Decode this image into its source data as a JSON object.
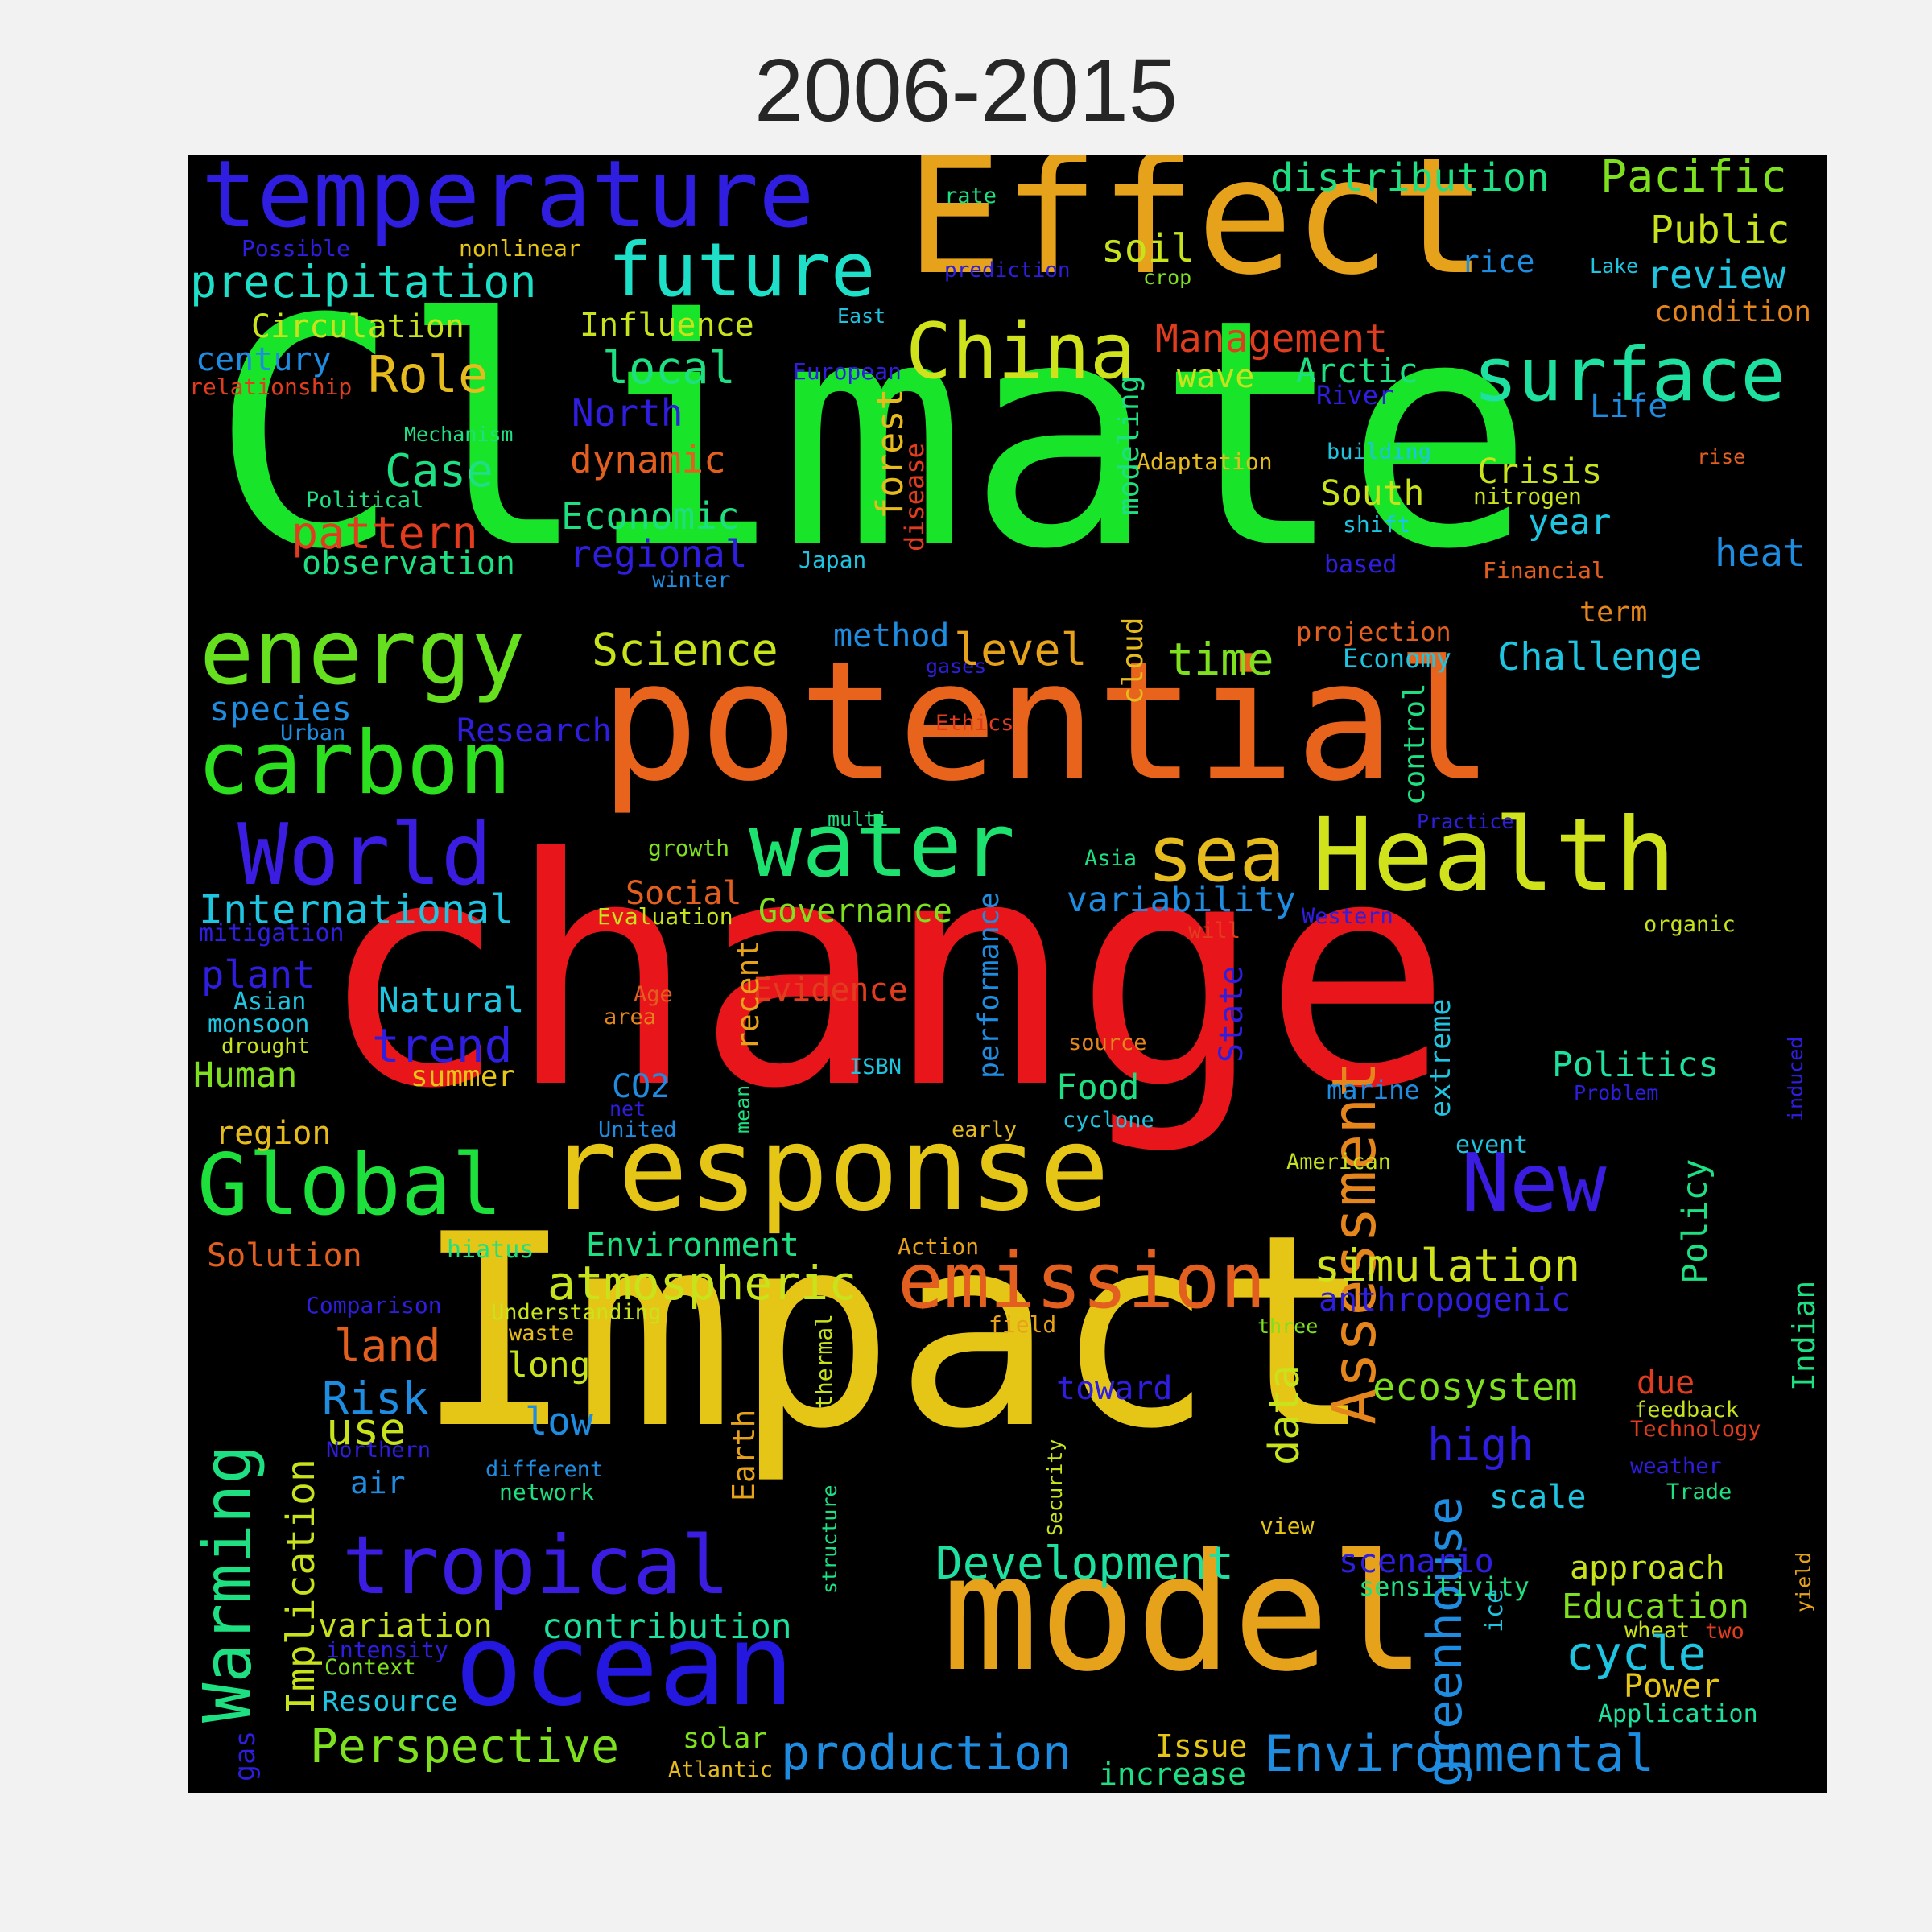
{
  "title": "2006-2015",
  "words": [
    {
      "text": "Climate",
      "color": "#18e52a"
    },
    {
      "text": "change",
      "color": "#e8161a"
    },
    {
      "text": "Impact",
      "color": "#e5c617"
    },
    {
      "text": "potential",
      "color": "#e8641c"
    },
    {
      "text": "Effect",
      "color": "#e5a21a"
    },
    {
      "text": "model",
      "color": "#e5a21a"
    },
    {
      "text": "response",
      "color": "#e5c617"
    },
    {
      "text": "ocean",
      "color": "#2317e0"
    },
    {
      "text": "temperature",
      "color": "#2f1de0"
    },
    {
      "text": "Health",
      "color": "#cfe21c"
    },
    {
      "text": "water",
      "color": "#1ee26f"
    },
    {
      "text": "energy",
      "color": "#66df1f"
    },
    {
      "text": "carbon",
      "color": "#2de01f"
    },
    {
      "text": "Global",
      "color": "#1ee03d"
    },
    {
      "text": "World",
      "color": "#3a1de0"
    },
    {
      "text": "tropical",
      "color": "#3a1de0"
    },
    {
      "text": "emission",
      "color": "#e25f1f"
    },
    {
      "text": "surface",
      "color": "#1ee0a0"
    },
    {
      "text": "China",
      "color": "#cfe21c"
    },
    {
      "text": "future",
      "color": "#1ee0c9"
    },
    {
      "text": "New",
      "color": "#3a1de0"
    },
    {
      "text": "sea",
      "color": "#e5bb1d"
    },
    {
      "text": "Warming",
      "color": "#1ee082"
    },
    {
      "text": "Assessment",
      "color": "#e5861d"
    },
    {
      "text": "greenhouse",
      "color": "#1e8ce0"
    },
    {
      "text": "atmospheric",
      "color": "#c8e21c"
    },
    {
      "text": "simulation",
      "color": "#cfe21c"
    },
    {
      "text": "Environmental",
      "color": "#1e8ce0"
    },
    {
      "text": "production",
      "color": "#1e8ce0"
    },
    {
      "text": "Perspective",
      "color": "#7ee01e"
    },
    {
      "text": "Development",
      "color": "#1ee0a0"
    },
    {
      "text": "precipitation",
      "color": "#1ee0c9"
    },
    {
      "text": "Pacific",
      "color": "#7ee01e"
    },
    {
      "text": "distribution",
      "color": "#1ee082"
    },
    {
      "text": "Public",
      "color": "#c8e21c"
    },
    {
      "text": "review",
      "color": "#1ec4e0"
    },
    {
      "text": "condition",
      "color": "#e5861d"
    },
    {
      "text": "Management",
      "color": "#e23c1f"
    },
    {
      "text": "Arctic",
      "color": "#1ee082"
    },
    {
      "text": "River",
      "color": "#2f1de0"
    },
    {
      "text": "Life",
      "color": "#1e8ce0"
    },
    {
      "text": "rice",
      "color": "#1e8ce0"
    },
    {
      "text": "Lake",
      "color": "#1ec4e0"
    },
    {
      "text": "soil",
      "color": "#c8e21c"
    },
    {
      "text": "crop",
      "color": "#7ee01e"
    },
    {
      "text": "wave",
      "color": "#c8e21c"
    },
    {
      "text": "rate",
      "color": "#1ee082"
    },
    {
      "text": "prediction",
      "color": "#2f1de0"
    },
    {
      "text": "East",
      "color": "#1ec4e0"
    },
    {
      "text": "European",
      "color": "#2f1de0"
    },
    {
      "text": "Possible",
      "color": "#2f1de0"
    },
    {
      "text": "nonlinear",
      "color": "#e5c617"
    },
    {
      "text": "Circulation",
      "color": "#c8e21c"
    },
    {
      "text": "Influence",
      "color": "#c8e21c"
    },
    {
      "text": "century",
      "color": "#1e8ce0"
    },
    {
      "text": "relationship",
      "color": "#e23c1f"
    },
    {
      "text": "Role",
      "color": "#e5bb1d"
    },
    {
      "text": "local",
      "color": "#1ee082"
    },
    {
      "text": "North",
      "color": "#2f1de0"
    },
    {
      "text": "Mechanism",
      "color": "#1ee082"
    },
    {
      "text": "dynamic",
      "color": "#e25f1f"
    },
    {
      "text": "Case",
      "color": "#1ee082"
    },
    {
      "text": "Political",
      "color": "#1ee082"
    },
    {
      "text": "pattern",
      "color": "#e23c1f"
    },
    {
      "text": "Economic",
      "color": "#1ee082"
    },
    {
      "text": "regional",
      "color": "#2f1de0"
    },
    {
      "text": "observation",
      "color": "#1ee082"
    },
    {
      "text": "winter",
      "color": "#1e8ce0"
    },
    {
      "text": "Japan",
      "color": "#1ec4e0"
    },
    {
      "text": "forest",
      "color": "#e5bb1d"
    },
    {
      "text": "disease",
      "color": "#e23c1f"
    },
    {
      "text": "modeling",
      "color": "#1ee082"
    },
    {
      "text": "cloud",
      "color": "#e5bb1d"
    },
    {
      "text": "Adaptation",
      "color": "#e5bb1d"
    },
    {
      "text": "building",
      "color": "#1ec4e0"
    },
    {
      "text": "South",
      "color": "#c8e21c"
    },
    {
      "text": "shift",
      "color": "#1ec4e0"
    },
    {
      "text": "based",
      "color": "#2f1de0"
    },
    {
      "text": "Crisis",
      "color": "#c8e21c"
    },
    {
      "text": "nitrogen",
      "color": "#c8e21c"
    },
    {
      "text": "year",
      "color": "#1ec4e0"
    },
    {
      "text": "rise",
      "color": "#e25f1f"
    },
    {
      "text": "heat",
      "color": "#1e8ce0"
    },
    {
      "text": "Financial",
      "color": "#e25f1f"
    },
    {
      "text": "Science",
      "color": "#c8e21c"
    },
    {
      "text": "method",
      "color": "#1e8ce0"
    },
    {
      "text": "gases",
      "color": "#2f1de0"
    },
    {
      "text": "level",
      "color": "#e5a21a"
    },
    {
      "text": "time",
      "color": "#7ee01e"
    },
    {
      "text": "projection",
      "color": "#e25f1f"
    },
    {
      "text": "Economy",
      "color": "#1ec4e0"
    },
    {
      "text": "Challenge",
      "color": "#1ec4e0"
    },
    {
      "text": "term",
      "color": "#e5861d"
    },
    {
      "text": "species",
      "color": "#1e8ce0"
    },
    {
      "text": "Urban",
      "color": "#1e8ce0"
    },
    {
      "text": "Research",
      "color": "#2f1de0"
    },
    {
      "text": "Ethics",
      "color": "#e23c1f"
    },
    {
      "text": "control",
      "color": "#1ee082"
    },
    {
      "text": "Practice",
      "color": "#2f1de0"
    },
    {
      "text": "multi",
      "color": "#1ee082"
    },
    {
      "text": "growth",
      "color": "#7ee01e"
    },
    {
      "text": "Asia",
      "color": "#1ee082"
    },
    {
      "text": "International",
      "color": "#1ec4e0"
    },
    {
      "text": "mitigation",
      "color": "#2f1de0"
    },
    {
      "text": "Social",
      "color": "#e25f1f"
    },
    {
      "text": "Evaluation",
      "color": "#c8e21c"
    },
    {
      "text": "Governance",
      "color": "#7ee01e"
    },
    {
      "text": "variability",
      "color": "#1e8ce0"
    },
    {
      "text": "Western",
      "color": "#2f1de0"
    },
    {
      "text": "will",
      "color": "#e23c1f"
    },
    {
      "text": "organic",
      "color": "#c8e21c"
    },
    {
      "text": "plant",
      "color": "#2f1de0"
    },
    {
      "text": "Asian",
      "color": "#1ec4e0"
    },
    {
      "text": "monsoon",
      "color": "#1ec4e0"
    },
    {
      "text": "drought",
      "color": "#c8e21c"
    },
    {
      "text": "Natural",
      "color": "#1ec4e0"
    },
    {
      "text": "trend",
      "color": "#2f1de0"
    },
    {
      "text": "Age",
      "color": "#e25f1f"
    },
    {
      "text": "area",
      "color": "#e5861d"
    },
    {
      "text": "Evidence",
      "color": "#e23c1f"
    },
    {
      "text": "recent",
      "color": "#e5a21a"
    },
    {
      "text": "performance",
      "color": "#1e8ce0"
    },
    {
      "text": "source",
      "color": "#e5861d"
    },
    {
      "text": "State",
      "color": "#2f1de0"
    },
    {
      "text": "extreme",
      "color": "#1ec4e0"
    },
    {
      "text": "Politics",
      "color": "#1ee0a0"
    },
    {
      "text": "Problem",
      "color": "#2f1de0"
    },
    {
      "text": "induced",
      "color": "#2f1de0"
    },
    {
      "text": "Human",
      "color": "#7ee01e"
    },
    {
      "text": "summer",
      "color": "#e5c617"
    },
    {
      "text": "CO2",
      "color": "#1e8ce0"
    },
    {
      "text": "net",
      "color": "#2f1de0"
    },
    {
      "text": "United",
      "color": "#1e8ce0"
    },
    {
      "text": "mean",
      "color": "#1ee082"
    },
    {
      "text": "ISBN",
      "color": "#1ec4e0"
    },
    {
      "text": "early",
      "color": "#e5bb1d"
    },
    {
      "text": "Food",
      "color": "#1ee082"
    },
    {
      "text": "cyclone",
      "color": "#1ec4e0"
    },
    {
      "text": "marine",
      "color": "#1e8ce0"
    },
    {
      "text": "event",
      "color": "#1ec4e0"
    },
    {
      "text": "American",
      "color": "#c8e21c"
    },
    {
      "text": "region",
      "color": "#e5bb1d"
    },
    {
      "text": "Solution",
      "color": "#e25f1f"
    },
    {
      "text": "hiatus",
      "color": "#1ee082"
    },
    {
      "text": "Environment",
      "color": "#1ee082"
    },
    {
      "text": "Action",
      "color": "#e5a21a"
    },
    {
      "text": "Policy",
      "color": "#1ee082"
    },
    {
      "text": "anthropogenic",
      "color": "#2f1de0"
    },
    {
      "text": "Comparison",
      "color": "#2f1de0"
    },
    {
      "text": "Understanding",
      "color": "#c8e21c"
    },
    {
      "text": "waste",
      "color": "#e5bb1d"
    },
    {
      "text": "field",
      "color": "#e5a21a"
    },
    {
      "text": "three",
      "color": "#7ee01e"
    },
    {
      "text": "Indian",
      "color": "#1ee082"
    },
    {
      "text": "land",
      "color": "#e25f1f"
    },
    {
      "text": "long",
      "color": "#c8e21c"
    },
    {
      "text": "thermal",
      "color": "#c8e21c"
    },
    {
      "text": "data",
      "color": "#c8e21c"
    },
    {
      "text": "toward",
      "color": "#2f1de0"
    },
    {
      "text": "ecosystem",
      "color": "#7ee01e"
    },
    {
      "text": "due",
      "color": "#e23c1f"
    },
    {
      "text": "feedback",
      "color": "#c8e21c"
    },
    {
      "text": "Technology",
      "color": "#e23c1f"
    },
    {
      "text": "Implication",
      "color": "#c8e21c"
    },
    {
      "text": "Risk",
      "color": "#1e8ce0"
    },
    {
      "text": "use",
      "color": "#c8e21c"
    },
    {
      "text": "low",
      "color": "#1e8ce0"
    },
    {
      "text": "Northern",
      "color": "#2f1de0"
    },
    {
      "text": "different",
      "color": "#1e8ce0"
    },
    {
      "text": "air",
      "color": "#1e8ce0"
    },
    {
      "text": "network",
      "color": "#1ee082"
    },
    {
      "text": "Earth",
      "color": "#e5a21a"
    },
    {
      "text": "high",
      "color": "#2f1de0"
    },
    {
      "text": "weather",
      "color": "#2f1de0"
    },
    {
      "text": "Trade",
      "color": "#1ee082"
    },
    {
      "text": "scale",
      "color": "#1ec4e0"
    },
    {
      "text": "Security",
      "color": "#c8e21c"
    },
    {
      "text": "view",
      "color": "#e5c617"
    },
    {
      "text": "structure",
      "color": "#1ee082"
    },
    {
      "text": "scenario",
      "color": "#2f1de0"
    },
    {
      "text": "sensitivity",
      "color": "#1ee082"
    },
    {
      "text": "approach",
      "color": "#c8e21c"
    },
    {
      "text": "Education",
      "color": "#7ee01e"
    },
    {
      "text": "ice",
      "color": "#1ec4e0"
    },
    {
      "text": "wheat",
      "color": "#c8e21c"
    },
    {
      "text": "two",
      "color": "#e23c1f"
    },
    {
      "text": "yield",
      "color": "#e5a21a"
    },
    {
      "text": "cycle",
      "color": "#1ec4e0"
    },
    {
      "text": "Power",
      "color": "#e5c617"
    },
    {
      "text": "Application",
      "color": "#1ee0a0"
    },
    {
      "text": "variation",
      "color": "#c8e21c"
    },
    {
      "text": "intensity",
      "color": "#2f1de0"
    },
    {
      "text": "Context",
      "color": "#7ee01e"
    },
    {
      "text": "Resource",
      "color": "#1ec4e0"
    },
    {
      "text": "contribution",
      "color": "#1ee0a0"
    },
    {
      "text": "solar",
      "color": "#7ee01e"
    },
    {
      "text": "Atlantic",
      "color": "#e5bb1d"
    },
    {
      "text": "gas",
      "color": "#2f1de0"
    },
    {
      "text": "Issue",
      "color": "#e5c617"
    },
    {
      "text": "increase",
      "color": "#1ee082"
    }
  ]
}
